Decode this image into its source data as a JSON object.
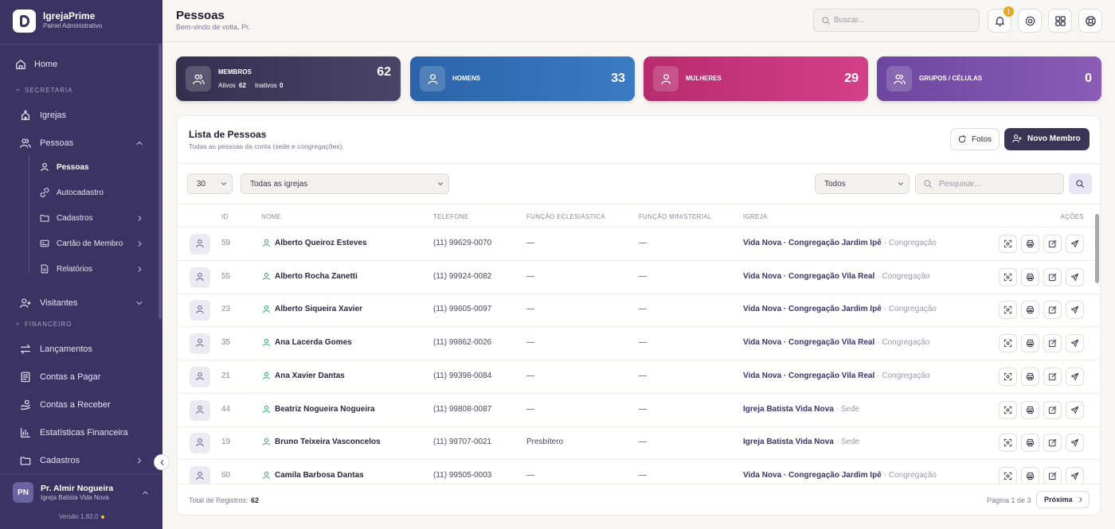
{
  "sidebar": {
    "brand": "IgrejaPrime",
    "subtitle": "Painel Administrativo",
    "home": "Home",
    "groups": [
      {
        "title": "SECRETARIA",
        "items": [
          {
            "label": "Igrejas"
          },
          {
            "label": "Pessoas",
            "children": [
              "Pessoas",
              "Autocadastro",
              "Cadastros",
              "Cartão de Membro",
              "Relatórios"
            ]
          },
          {
            "label": "Visitantes"
          }
        ]
      },
      {
        "title": "FINANCEIRO",
        "items": [
          {
            "label": "Lançamentos"
          },
          {
            "label": "Contas a Pagar"
          },
          {
            "label": "Contas a Receber"
          },
          {
            "label": "Estatísticas Financeira"
          },
          {
            "label": "Cadastros"
          }
        ]
      }
    ],
    "user": {
      "initials": "PN",
      "name": "Pr. Almir Nogueira",
      "church": "Igreja Batista Vida Nova"
    },
    "version": "Versão 1.82.0"
  },
  "header": {
    "title": "Pessoas",
    "subtitle": "Bem-vindo de volta, Pr.",
    "search": "Buscar...",
    "notifications": 1
  },
  "stats": [
    {
      "label": "MEMBROS",
      "value": 62,
      "active_label": "Ativos",
      "active": 62,
      "inactive_label": "Inativos",
      "inactive": 0
    },
    {
      "label": "HOMENS",
      "value": 33
    },
    {
      "label": "MULHERES",
      "value": 29
    },
    {
      "label": "GRUPOS / CÉLULAS",
      "value": 0
    }
  ],
  "list": {
    "title": "Lista de Pessoas",
    "subtitle": "Todas as pessoas da conta (sede e congregações).",
    "photos_button": "Fotos",
    "new_button": "Novo Membro",
    "filters": {
      "page_size": "30",
      "church": "Todas as igrejas",
      "status": "Todos",
      "search": "Pesquisar..."
    }
  },
  "table": {
    "columns": [
      "ID",
      "NOME",
      "TELEFONE",
      "FUNÇÃO ECLESIÁSTICA",
      "FUNÇÃO MINISTERIAL",
      "IGREJA",
      "AÇÕES"
    ],
    "rows": [
      {
        "id": 59,
        "nome": "Alberto Queiroz Esteves",
        "telefone": "(11) 99629-0070",
        "funcao_eclesiastica": "—",
        "funcao_ministerial": "—",
        "igreja": "Vida Nova · Congregação Jardim Ipê",
        "tipo": "· Congregação"
      },
      {
        "id": 55,
        "nome": "Alberto Rocha Zanetti",
        "telefone": "(11) 99924-0082",
        "funcao_eclesiastica": "—",
        "funcao_ministerial": "—",
        "igreja": "Vida Nova · Congregação Vila Real",
        "tipo": "· Congregação"
      },
      {
        "id": 23,
        "nome": "Alberto Siqueira Xavier",
        "telefone": "(11) 99605-0097",
        "funcao_eclesiastica": "—",
        "funcao_ministerial": "—",
        "igreja": "Vida Nova · Congregação Jardim Ipê",
        "tipo": "· Congregação"
      },
      {
        "id": 35,
        "nome": "Ana Lacerda Gomes",
        "telefone": "(11) 99862-0026",
        "funcao_eclesiastica": "—",
        "funcao_ministerial": "—",
        "igreja": "Vida Nova · Congregação Vila Real",
        "tipo": "· Congregação"
      },
      {
        "id": 21,
        "nome": "Ana Xavier Dantas",
        "telefone": "(11) 99398-0084",
        "funcao_eclesiastica": "—",
        "funcao_ministerial": "—",
        "igreja": "Vida Nova · Congregação Vila Real",
        "tipo": "· Congregação"
      },
      {
        "id": 44,
        "nome": "Beatriz Nogueira Nogueira",
        "telefone": "(11) 99808-0087",
        "funcao_eclesiastica": "—",
        "funcao_ministerial": "—",
        "igreja": "Igreja Batista Vida Nova",
        "tipo": "· Sede"
      },
      {
        "id": 19,
        "nome": "Bruno Teixeira Vasconcelos",
        "telefone": "(11) 99707-0021",
        "funcao_eclesiastica": "Presbítero",
        "funcao_ministerial": "—",
        "igreja": "Igreja Batista Vida Nova",
        "tipo": "· Sede"
      },
      {
        "id": 60,
        "nome": "Camila Barbosa Dantas",
        "telefone": "(11) 99505-0003",
        "funcao_eclesiastica": "—",
        "funcao_ministerial": "—",
        "igreja": "Vida Nova · Congregação Jardim Ipê",
        "tipo": "· Congregação"
      }
    ]
  },
  "footer": {
    "total_label": "Total de Registros:",
    "total": 62,
    "page": "Página 1 de 3",
    "next": "Próxima"
  }
}
